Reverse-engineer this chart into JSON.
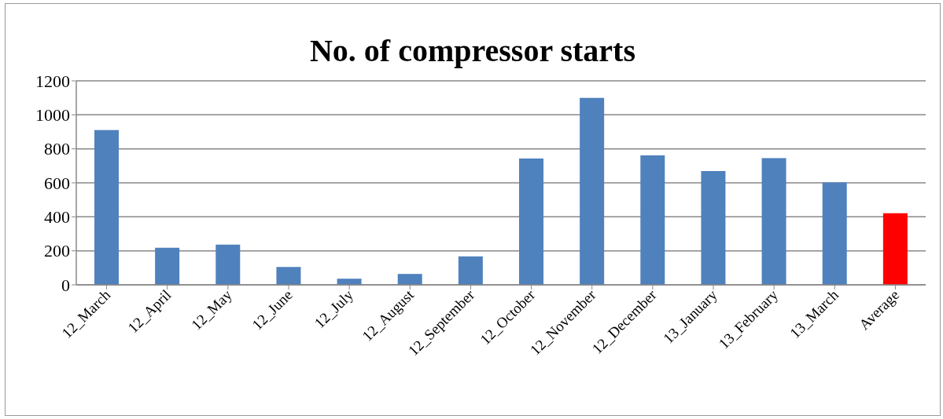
{
  "chart_data": {
    "type": "bar",
    "title": "No. of compressor starts",
    "categories": [
      "12_March",
      "12_April",
      "12_May",
      "12_June",
      "12_July",
      "12_August",
      "12_September",
      "12_October",
      "12_November",
      "12_December",
      "13_January",
      "13_February",
      "13_March",
      "Average"
    ],
    "values": [
      910,
      218,
      236,
      105,
      36,
      64,
      167,
      743,
      1100,
      761,
      669,
      745,
      602,
      421
    ],
    "colors": [
      "#4f81bd",
      "#4f81bd",
      "#4f81bd",
      "#4f81bd",
      "#4f81bd",
      "#4f81bd",
      "#4f81bd",
      "#4f81bd",
      "#4f81bd",
      "#4f81bd",
      "#4f81bd",
      "#4f81bd",
      "#4f81bd",
      "#ff0000"
    ],
    "ylim": [
      0,
      1200
    ],
    "yticks": [
      0,
      200,
      400,
      600,
      800,
      1000,
      1200
    ],
    "grid": "y"
  }
}
